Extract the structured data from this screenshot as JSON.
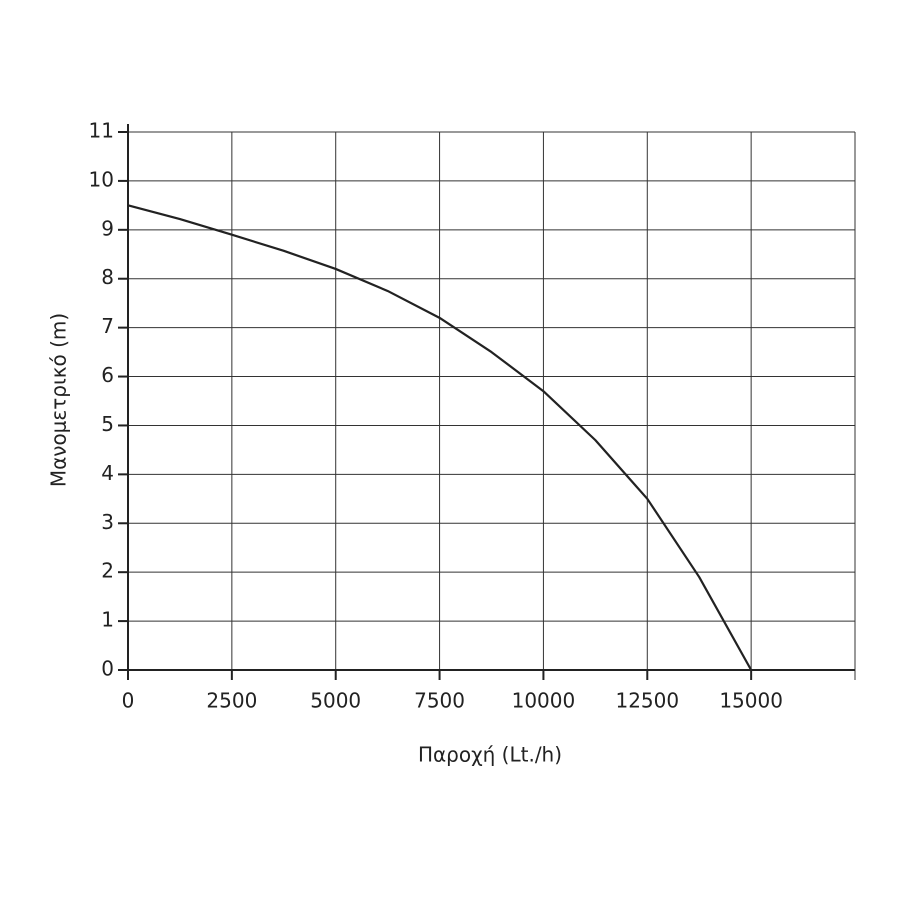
{
  "chart_data": {
    "type": "line",
    "x_label": "Παροχή (Lt./h)",
    "y_label": "Μανομετρικό  (m)",
    "x": [
      0,
      1250,
      2500,
      3750,
      5000,
      6250,
      7500,
      8750,
      10000,
      11250,
      12500,
      13750,
      15000
    ],
    "series": [
      {
        "color": "#222222",
        "values": [
          9.5,
          9.22,
          8.9,
          8.57,
          8.2,
          7.75,
          7.2,
          6.5,
          5.7,
          4.7,
          3.5,
          1.9,
          0
        ]
      }
    ],
    "xlim": [
      0,
      17500
    ],
    "xticks": [
      0,
      2500,
      5000,
      7500,
      10000,
      12500,
      15000
    ],
    "ylim": [
      0,
      11
    ],
    "yticks": [
      0,
      1,
      2,
      3,
      4,
      5,
      6,
      7,
      8,
      9,
      10,
      11
    ],
    "grid": true
  }
}
